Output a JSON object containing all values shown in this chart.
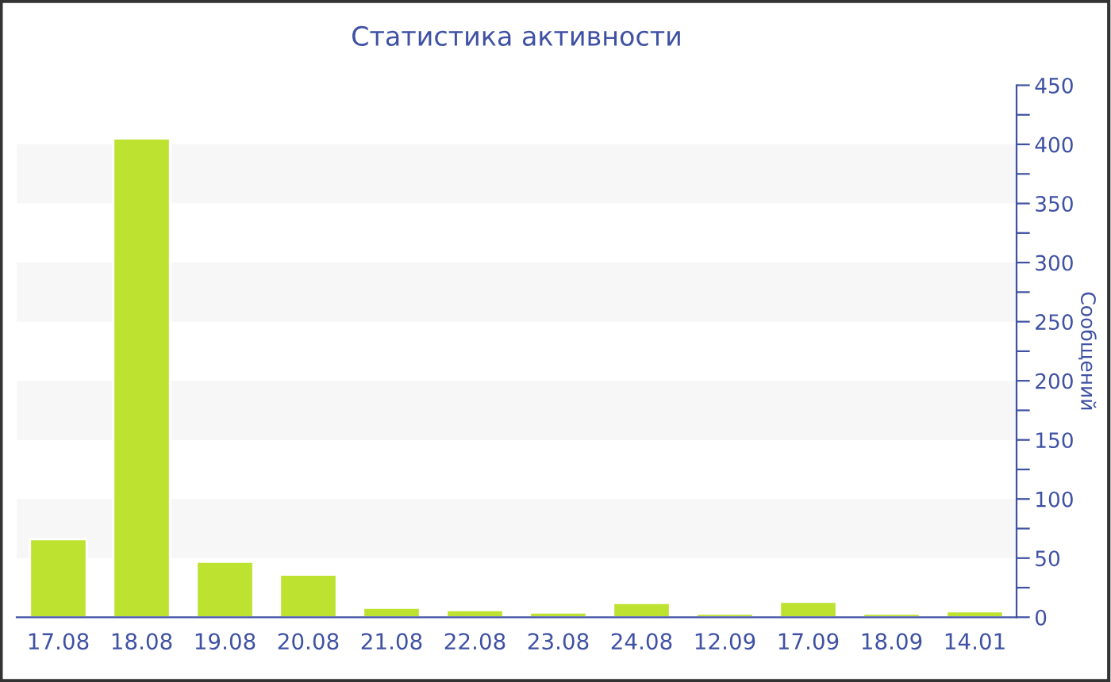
{
  "chart_data": {
    "type": "bar",
    "title": "Статистика активности",
    "ylabel": "Сообщений",
    "categories": [
      "17.08",
      "18.08",
      "19.08",
      "20.08",
      "21.08",
      "22.08",
      "23.08",
      "24.08",
      "12.09",
      "17.09",
      "18.09",
      "14.01"
    ],
    "values": [
      66,
      405,
      47,
      36,
      8,
      6,
      4,
      12,
      3,
      13,
      3,
      5
    ],
    "color": "#bde22f",
    "ylim": [
      0,
      450
    ],
    "yticks": [
      0,
      {
        "value": 25,
        "label": null
      },
      50,
      {
        "value": 75,
        "label": null
      },
      100,
      {
        "value": 125,
        "label": null
      },
      150,
      {
        "value": 175,
        "label": null
      },
      200,
      {
        "value": 225,
        "label": null
      },
      250,
      {
        "value": 275,
        "label": null
      },
      300,
      {
        "value": 325,
        "label": null
      },
      350,
      {
        "value": 375,
        "label": null
      },
      400,
      {
        "value": 425,
        "label": null
      },
      450
    ],
    "bands": [
      {
        "axis": "y",
        "from": 50,
        "to": 100,
        "color": "#f7f7f7"
      },
      {
        "axis": "y",
        "from": 150,
        "to": 200,
        "color": "#f7f7f7"
      },
      {
        "axis": "y",
        "from": 250,
        "to": 300,
        "color": "#f7f7f7"
      },
      {
        "axis": "y",
        "from": 350,
        "to": 400,
        "color": "#f7f7f7"
      }
    ],
    "grid": false,
    "legend": false
  }
}
